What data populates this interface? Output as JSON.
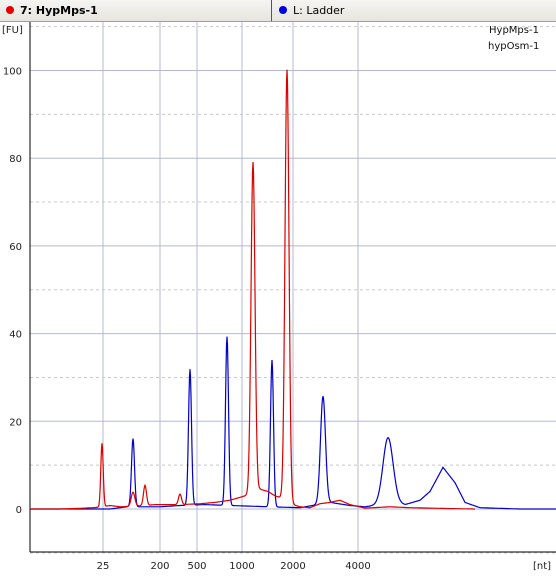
{
  "tabs": [
    {
      "label": "7: HypMps-1",
      "dot_color": "#e00000",
      "active": true
    },
    {
      "label": "L: Ladder",
      "dot_color": "#0000e0",
      "active": false
    }
  ],
  "chart_data": {
    "type": "line",
    "ylabel": "[FU]",
    "xlabel": "[nt]",
    "ylim": [
      -10,
      108
    ],
    "y_ticks": [
      "0",
      "20",
      "40",
      "60",
      "80",
      "100"
    ],
    "x_ticks": [
      "25",
      "200",
      "500",
      "1000",
      "2000",
      "4000"
    ],
    "grid": true,
    "legend_position": "top-right",
    "legend": [
      "HypMps-1",
      "hypOsm-1"
    ],
    "colors": {
      "red": "#d80000",
      "blue": "#0000c8",
      "grid": "#b4b8d2"
    },
    "series": [
      {
        "name": "HypMps-1",
        "color": "#d80000",
        "baseline": [
          [
            0,
            0
          ],
          [
            30,
            0
          ],
          [
            55,
            0.2
          ],
          [
            70,
            0.4
          ],
          [
            80,
            0.8
          ],
          [
            90,
            0.5
          ],
          [
            100,
            0.6
          ],
          [
            115,
            0.8
          ],
          [
            125,
            1.0
          ],
          [
            150,
            1.0
          ],
          [
            170,
            1.2
          ],
          [
            185,
            1.5
          ],
          [
            200,
            2.0
          ],
          [
            215,
            3.0
          ],
          [
            222,
            3.5
          ],
          [
            230,
            4.5
          ],
          [
            238,
            4.0
          ],
          [
            245,
            3.0
          ],
          [
            252,
            2.5
          ],
          [
            260,
            1.2
          ],
          [
            270,
            0.5
          ],
          [
            280,
            0.3
          ],
          [
            290,
            1.2
          ],
          [
            300,
            1.5
          ],
          [
            310,
            2.0
          ],
          [
            320,
            1.0
          ],
          [
            335,
            0.2
          ],
          [
            360,
            0.5
          ],
          [
            380,
            0.3
          ],
          [
            400,
            0.2
          ],
          [
            420,
            0.1
          ],
          [
            445,
            0.0
          ]
        ],
        "peaks": [
          [
            72,
            14.5,
            1.2
          ],
          [
            103,
            3.2,
            1.8
          ],
          [
            115,
            4.6,
            1.5
          ],
          [
            150,
            2.4,
            1.5
          ],
          [
            223,
            75.5,
            2.0
          ],
          [
            257,
            98.5,
            2.0
          ]
        ]
      },
      {
        "name": "hypOsm-1",
        "color": "#0000c8",
        "baseline": [
          [
            0,
            0
          ],
          [
            80,
            0
          ],
          [
            90,
            0.3
          ],
          [
            100,
            0.6
          ],
          [
            108,
            0.5
          ],
          [
            130,
            0.5
          ],
          [
            150,
            0.8
          ],
          [
            175,
            1.0
          ],
          [
            200,
            0.8
          ],
          [
            240,
            0.5
          ],
          [
            270,
            0.3
          ],
          [
            300,
            1.5
          ],
          [
            320,
            0.8
          ],
          [
            335,
            0.5
          ],
          [
            350,
            1.0
          ],
          [
            365,
            1.5
          ],
          [
            375,
            1.0
          ],
          [
            390,
            2.0
          ],
          [
            400,
            4.0
          ],
          [
            413,
            9.5
          ],
          [
            425,
            6.0
          ],
          [
            435,
            1.5
          ],
          [
            450,
            0.3
          ],
          [
            490,
            0.0
          ],
          [
            542,
            0.0
          ]
        ],
        "peaks": [
          [
            103,
            15.5,
            1.5
          ],
          [
            160,
            31.0,
            1.5
          ],
          [
            197,
            38.5,
            1.5
          ],
          [
            242,
            33.5,
            1.5
          ],
          [
            293,
            24.5,
            2.5
          ],
          [
            358,
            15.0,
            5.0
          ]
        ]
      }
    ]
  }
}
